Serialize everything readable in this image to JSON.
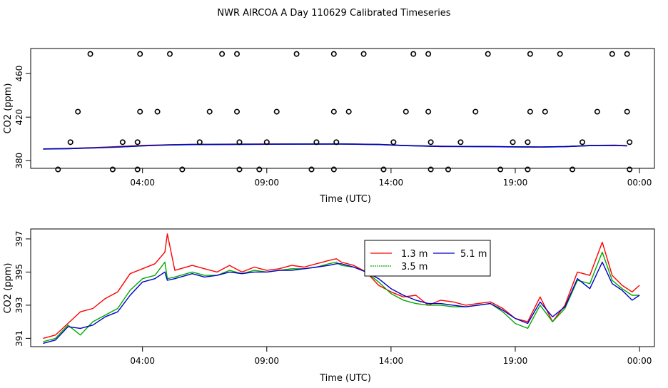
{
  "page_title": "NWR AIRCOA A  Day 110629  Calibrated Timeseries",
  "x_tick_labels": [
    "04:00",
    "09:00",
    "14:00",
    "19:00",
    "00:00"
  ],
  "chart_data": [
    {
      "type": "scatter",
      "title": "",
      "xlabel": "Time (UTC)",
      "ylabel": "CO2 (ppm)",
      "x_unit": "hours UTC since 00:00",
      "xlim": [
        -0.5,
        24.6
      ],
      "ylim": [
        373,
        483
      ],
      "yticks": [
        380,
        420,
        460
      ],
      "xticks": [
        4,
        9,
        14,
        19,
        24
      ],
      "calibration_points": {
        "y478": [
          1.9,
          3.9,
          5.1,
          7.2,
          7.8,
          10.2,
          11.7,
          12.9,
          14.9,
          15.5,
          17.9,
          19.6,
          20.8,
          22.9,
          23.5
        ],
        "y425": [
          1.4,
          3.9,
          4.6,
          6.7,
          7.8,
          9.4,
          11.7,
          12.3,
          14.6,
          15.5,
          17.4,
          19.6,
          20.2,
          22.3,
          23.5
        ],
        "y397": [
          1.1,
          3.2,
          3.8,
          6.3,
          7.9,
          9.0,
          11.0,
          11.8,
          14.1,
          15.6,
          16.8,
          18.9,
          19.5,
          21.7,
          23.6
        ],
        "y372": [
          0.6,
          2.8,
          3.8,
          5.6,
          7.9,
          8.7,
          10.8,
          11.7,
          13.7,
          15.6,
          16.3,
          18.4,
          19.5,
          21.3,
          23.6
        ]
      },
      "series": [
        {
          "name": "1.3 m",
          "color": "#ff0000",
          "x": [
            0.0,
            0.5,
            1.0,
            2.0,
            3.0,
            4.0,
            5.0,
            6.0,
            8.0,
            10.0,
            12.0,
            13.5,
            14.5,
            16.0,
            18.0,
            19.0,
            20.0,
            21.0,
            22.0,
            23.0,
            23.5
          ],
          "values": [
            390.8,
            391.0,
            391.2,
            392.0,
            393.0,
            394.0,
            394.6,
            395.0,
            395.2,
            395.3,
            395.4,
            395.0,
            394.0,
            393.3,
            393.0,
            392.8,
            392.6,
            393.0,
            394.0,
            394.2,
            393.8
          ]
        },
        {
          "name": "3.5 m",
          "color": "#00aa00",
          "x": [
            0.0,
            0.5,
            1.0,
            2.0,
            3.0,
            4.0,
            5.0,
            6.0,
            8.0,
            10.0,
            12.0,
            13.5,
            14.5,
            16.0,
            18.0,
            19.0,
            20.0,
            21.0,
            22.0,
            23.0,
            23.5
          ],
          "values": [
            390.8,
            391.0,
            391.1,
            391.8,
            392.6,
            393.7,
            394.5,
            394.9,
            395.1,
            395.2,
            395.3,
            394.9,
            393.9,
            393.1,
            392.9,
            392.7,
            392.5,
            392.9,
            393.9,
            394.1,
            393.7
          ]
        },
        {
          "name": "5.1 m",
          "color": "#0000cc",
          "x": [
            0.0,
            0.5,
            1.0,
            2.0,
            3.0,
            4.0,
            5.0,
            6.0,
            8.0,
            10.0,
            12.0,
            13.5,
            14.5,
            16.0,
            18.0,
            19.0,
            20.0,
            21.0,
            22.0,
            23.0,
            23.5
          ],
          "values": [
            390.7,
            390.9,
            391.1,
            391.7,
            392.5,
            393.6,
            394.4,
            394.8,
            395.0,
            395.2,
            395.3,
            394.9,
            393.9,
            393.1,
            392.9,
            392.7,
            392.5,
            392.9,
            393.8,
            394.0,
            393.6
          ]
        }
      ]
    },
    {
      "type": "line",
      "title": "",
      "xlabel": "Time (UTC)",
      "ylabel": "CO2 (ppm)",
      "x_unit": "hours UTC since 00:00",
      "xlim": [
        -0.5,
        24.6
      ],
      "ylim": [
        390.5,
        397.6
      ],
      "yticks": [
        391,
        393,
        395,
        397
      ],
      "xticks": [
        4,
        9,
        14,
        19,
        24
      ],
      "legend": "top-center",
      "series": [
        {
          "name": "1.3 m",
          "color": "#ff0000",
          "x": [
            0.0,
            0.5,
            1.0,
            1.5,
            2.0,
            2.5,
            3.0,
            3.5,
            4.0,
            4.5,
            4.9,
            5.0,
            5.3,
            6.0,
            6.5,
            7.0,
            7.5,
            8.0,
            8.5,
            9.0,
            9.5,
            10.0,
            10.5,
            11.0,
            11.5,
            11.8,
            12.0,
            12.5,
            13.0,
            13.5,
            14.0,
            14.5,
            15.0,
            15.5,
            16.0,
            16.5,
            17.0,
            17.5,
            18.0,
            18.5,
            19.0,
            19.5,
            20.0,
            20.5,
            21.0,
            21.5,
            22.0,
            22.5,
            22.9,
            23.3,
            23.7,
            24.0
          ],
          "values": [
            391.0,
            391.2,
            391.9,
            392.6,
            392.8,
            393.4,
            393.8,
            394.9,
            395.2,
            395.5,
            396.2,
            397.3,
            395.1,
            395.4,
            395.2,
            395.0,
            395.4,
            395.0,
            395.3,
            395.1,
            395.2,
            395.4,
            395.3,
            395.5,
            395.7,
            395.8,
            395.6,
            395.4,
            395.0,
            394.2,
            393.8,
            393.5,
            393.6,
            393.0,
            393.3,
            393.2,
            393.0,
            393.1,
            393.2,
            392.8,
            392.2,
            392.0,
            393.5,
            392.0,
            393.0,
            395.0,
            394.8,
            396.8,
            394.8,
            394.2,
            393.8,
            394.2
          ]
        },
        {
          "name": "3.5 m",
          "color": "#00aa00",
          "x": [
            0.0,
            0.5,
            1.0,
            1.5,
            2.0,
            2.5,
            3.0,
            3.5,
            4.0,
            4.5,
            4.9,
            5.0,
            5.3,
            6.0,
            6.5,
            7.0,
            7.5,
            8.0,
            8.5,
            9.0,
            9.5,
            10.0,
            10.5,
            11.0,
            11.5,
            11.8,
            12.0,
            12.5,
            13.0,
            13.5,
            14.0,
            14.5,
            15.0,
            15.5,
            16.0,
            16.5,
            17.0,
            17.5,
            18.0,
            18.5,
            19.0,
            19.5,
            20.0,
            20.5,
            21.0,
            21.5,
            22.0,
            22.5,
            22.9,
            23.3,
            23.7,
            24.0
          ],
          "values": [
            390.8,
            391.0,
            391.8,
            391.2,
            392.0,
            392.4,
            392.8,
            393.9,
            394.6,
            394.8,
            395.6,
            394.6,
            394.7,
            395.0,
            394.8,
            394.8,
            395.1,
            394.9,
            395.1,
            395.0,
            395.1,
            395.2,
            395.2,
            395.3,
            395.5,
            395.6,
            395.4,
            395.3,
            395.0,
            394.4,
            393.7,
            393.3,
            393.1,
            393.0,
            393.0,
            392.9,
            392.9,
            393.0,
            393.1,
            392.6,
            391.9,
            391.6,
            393.0,
            392.0,
            392.8,
            394.5,
            394.3,
            396.2,
            394.5,
            394.0,
            393.6,
            393.6
          ]
        },
        {
          "name": "5.1 m",
          "color": "#0000cc",
          "x": [
            0.0,
            0.5,
            1.0,
            1.5,
            2.0,
            2.5,
            3.0,
            3.5,
            4.0,
            4.5,
            4.9,
            5.0,
            5.3,
            6.0,
            6.5,
            7.0,
            7.5,
            8.0,
            8.5,
            9.0,
            9.5,
            10.0,
            10.5,
            11.0,
            11.5,
            11.8,
            12.0,
            12.5,
            13.0,
            13.5,
            14.0,
            14.5,
            15.0,
            15.5,
            16.0,
            16.5,
            17.0,
            17.5,
            18.0,
            18.5,
            19.0,
            19.5,
            20.0,
            20.5,
            21.0,
            21.5,
            22.0,
            22.5,
            22.9,
            23.3,
            23.7,
            24.0
          ],
          "values": [
            390.7,
            390.9,
            391.7,
            391.6,
            391.8,
            392.3,
            392.6,
            393.6,
            394.4,
            394.6,
            395.0,
            394.5,
            394.6,
            394.9,
            394.7,
            394.8,
            395.0,
            394.9,
            395.0,
            395.0,
            395.1,
            395.1,
            395.2,
            395.3,
            395.4,
            395.5,
            395.5,
            395.3,
            395.0,
            394.6,
            394.0,
            393.6,
            393.3,
            393.1,
            393.1,
            393.0,
            392.9,
            393.0,
            393.1,
            392.7,
            392.2,
            391.9,
            393.2,
            392.3,
            392.9,
            394.6,
            394.0,
            395.6,
            394.3,
            393.9,
            393.3,
            393.6
          ]
        }
      ]
    }
  ]
}
